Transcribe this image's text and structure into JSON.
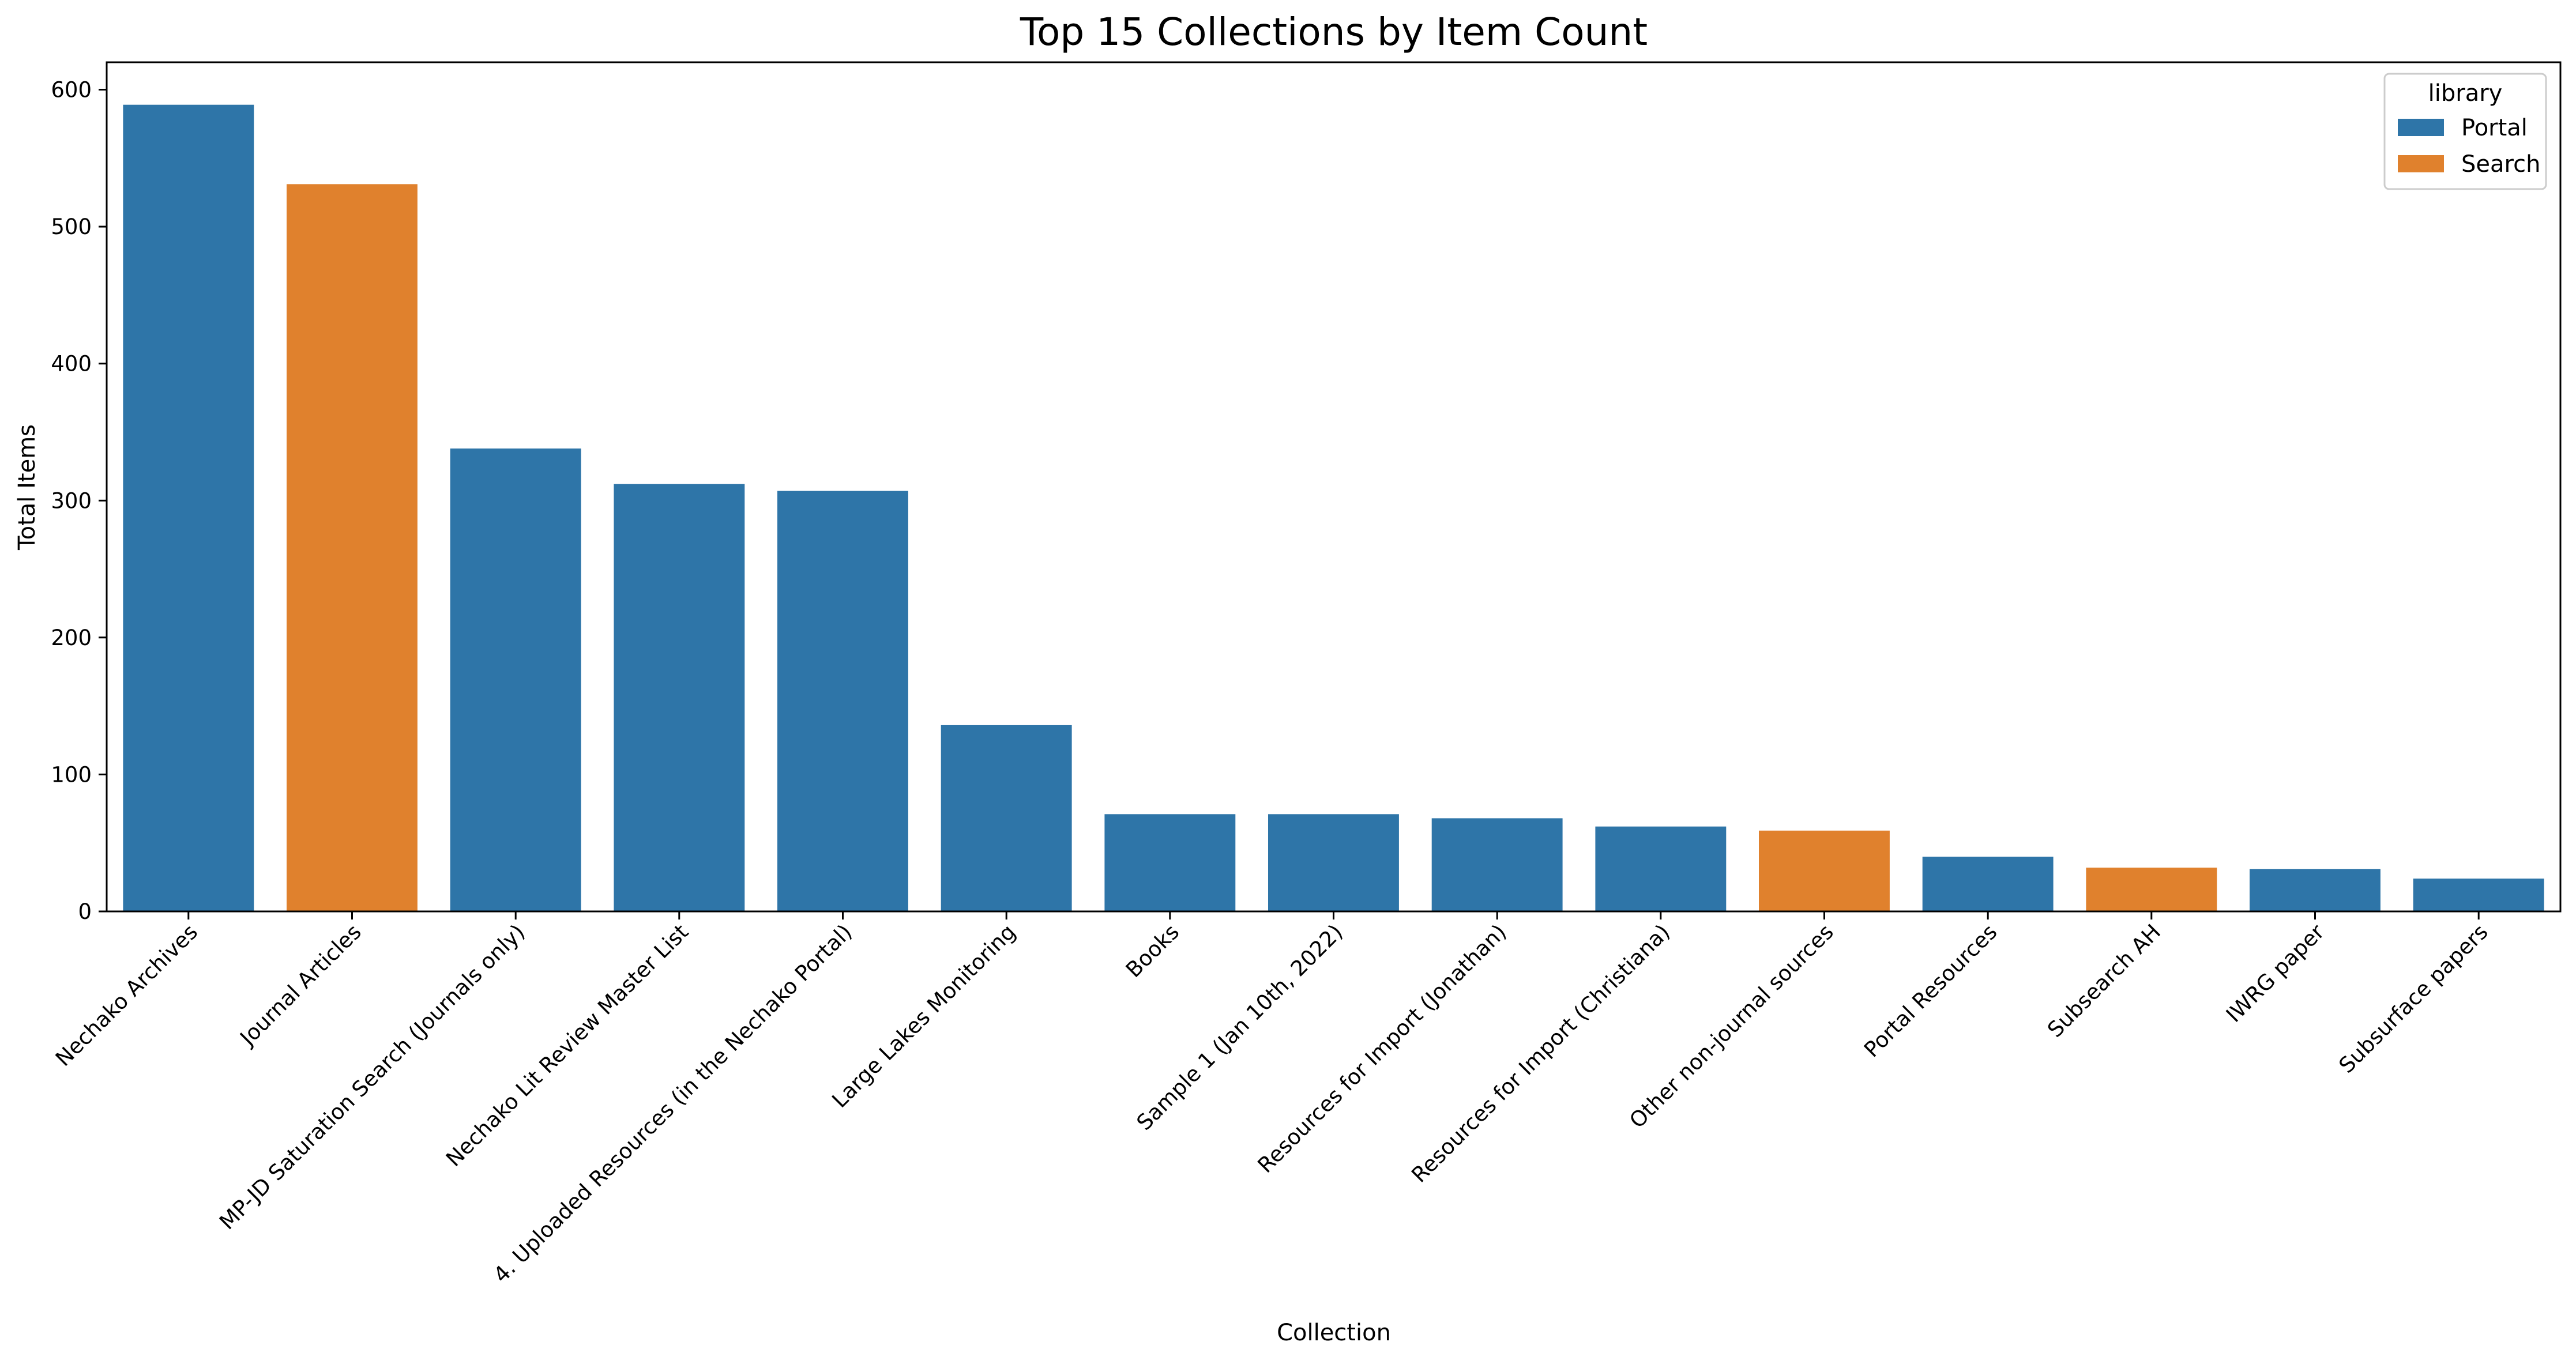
{
  "chart_data": {
    "type": "bar",
    "title": "Top 15 Collections by Item Count",
    "xlabel": "Collection",
    "ylabel": "Total Items",
    "ylim": [
      0,
      620
    ],
    "yticks": [
      0,
      100,
      200,
      300,
      400,
      500,
      600
    ],
    "grid": false,
    "legend": {
      "title": "library",
      "placement": "top-right",
      "entries": [
        {
          "name": "Portal",
          "color": "#2e75a8"
        },
        {
          "name": "Search",
          "color": "#e0812d"
        }
      ]
    },
    "categories": [
      "Nechako Archives",
      "Journal Articles",
      "MP-JD Saturation Search (Journals only)",
      "Nechako Lit Review Master List",
      "4. Uploaded Resources (in the Nechako Portal)",
      "Large Lakes Monitoring",
      "Books",
      "Sample 1 (Jan 10th, 2022)",
      "Resources for Import (Jonathan)",
      "Resources for Import (Christiana)",
      "Other non-journal sources",
      "Portal Resources",
      "Subsearch AH",
      "IWRG paper",
      "Subsurface papers"
    ],
    "values": [
      589,
      531,
      338,
      312,
      307,
      136,
      71,
      71,
      68,
      62,
      59,
      40,
      32,
      31,
      24
    ],
    "library": [
      "Portal",
      "Search",
      "Portal",
      "Portal",
      "Portal",
      "Portal",
      "Portal",
      "Portal",
      "Portal",
      "Portal",
      "Search",
      "Portal",
      "Search",
      "Portal",
      "Portal"
    ]
  }
}
